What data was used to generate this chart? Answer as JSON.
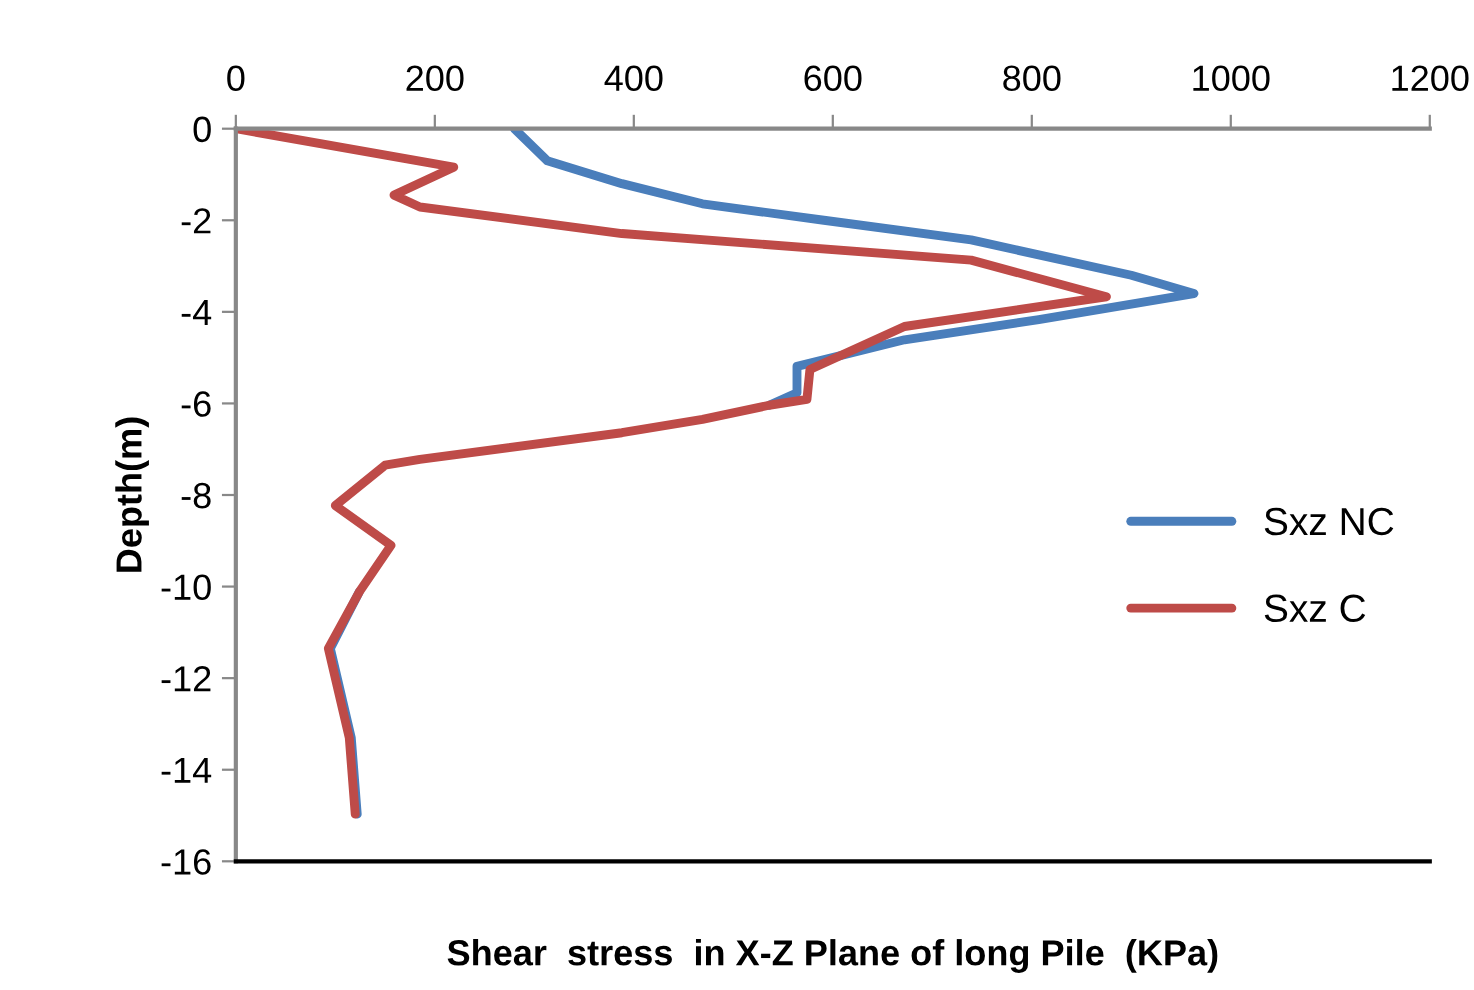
{
  "chart_data": {
    "type": "line",
    "xlabel": "Shear  stress  in X-Z Plane of long Pile  (KPa)",
    "ylabel": "Depth(m)",
    "xlim": [
      0,
      1200
    ],
    "xticks": [
      0,
      200,
      400,
      600,
      800,
      1000,
      1200
    ],
    "ylim": [
      -16,
      0
    ],
    "yticks": [
      -16,
      -14,
      -12,
      -10,
      -8,
      -6,
      -4,
      -2,
      0
    ],
    "grid": false,
    "legend": "right",
    "marker": "none",
    "line_style": "solid",
    "series": [
      {
        "name": "Sxz NC",
        "color": "#4a7ebb",
        "x": [
          280,
          313,
          388,
          469,
          591,
          739,
          900,
          963,
          807,
          672,
          564,
          564,
          536,
          null,
          null,
          null,
          null,
          null,
          null,
          124,
          95,
          116,
          122
        ],
        "values": [
          0,
          -0.7,
          -1.2,
          -1.64,
          -2.0,
          -2.43,
          -3.2,
          -3.6,
          -4.17,
          -4.61,
          -5.19,
          -5.77,
          -6.04,
          null,
          null,
          null,
          null,
          null,
          null,
          -10.12,
          -11.35,
          -13.3,
          -14.97
        ]
      },
      {
        "name": "Sxz C",
        "color": "#be4b48",
        "x": [
          0,
          219,
          159,
          185,
          388,
          739,
          875,
          672,
          577,
          574,
          536,
          469,
          388,
          185,
          150,
          100,
          156,
          124,
          93,
          114,
          120
        ],
        "values": [
          0,
          -0.84,
          -1.45,
          -1.71,
          -2.29,
          -2.87,
          -3.67,
          -4.32,
          -5.26,
          -5.91,
          -6.04,
          -6.35,
          -6.64,
          -7.22,
          -7.35,
          -8.23,
          -9.1,
          -10.12,
          -11.35,
          -13.3,
          -14.97
        ]
      }
    ]
  }
}
